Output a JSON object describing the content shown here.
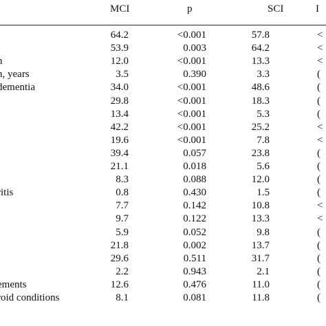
{
  "header": {
    "label": "",
    "mci": "MCI",
    "p": "p",
    "sci": "SCI",
    "extra": "I"
  },
  "rows": [
    {
      "label": "",
      "mci": "64.2",
      "p": "<0.001",
      "sci": "57.8",
      "extra": "<"
    },
    {
      "label": "",
      "mci": "53.9",
      "p": "0.003",
      "sci": "64.2",
      "extra": "<"
    },
    {
      "label": "n",
      "mci": "12.0",
      "p": "<0.001",
      "sci": "13.3",
      "extra": "<"
    },
    {
      "label": "n, years",
      "mci": "3.5",
      "p": "0.390",
      "sci": "3.3",
      "extra": "("
    },
    {
      "label": "dementia",
      "mci": "34.0",
      "p": "<0.001",
      "sci": "48.6",
      "extra": "("
    },
    {
      "label": "",
      "mci": "29.8",
      "p": "<0.001",
      "sci": "18.3",
      "extra": "("
    },
    {
      "label": "",
      "mci": "13.4",
      "p": "<0.001",
      "sci": "5.3",
      "extra": "("
    },
    {
      "label": "",
      "mci": "42.2",
      "p": "<0.001",
      "sci": "25.2",
      "extra": "<"
    },
    {
      "label": "",
      "mci": "19.6",
      "p": "<0.001",
      "sci": "7.8",
      "extra": "<"
    },
    {
      "label": "",
      "mci": "39.4",
      "p": "0.057",
      "sci": "23.8",
      "extra": "("
    },
    {
      "label": "",
      "mci": "21.1",
      "p": "0.018",
      "sci": "5.6",
      "extra": "("
    },
    {
      "label": "",
      "mci": "8.3",
      "p": "0.088",
      "sci": "12.0",
      "extra": "("
    },
    {
      "label": "ritis",
      "mci": "0.8",
      "p": "0.430",
      "sci": "1.5",
      "extra": "("
    },
    {
      "label": "",
      "mci": "7.7",
      "p": "0.142",
      "sci": "10.8",
      "extra": "<"
    },
    {
      "label": "",
      "mci": "9.7",
      "p": "0.122",
      "sci": "13.3",
      "extra": "<"
    },
    {
      "label": "",
      "mci": "5.9",
      "p": "0.052",
      "sci": "9.8",
      "extra": "("
    },
    {
      "label": "",
      "mci": "21.8",
      "p": "0.002",
      "sci": "13.7",
      "extra": "("
    },
    {
      "label": "",
      "mci": "29.6",
      "p": "0.511",
      "sci": "31.7",
      "extra": "("
    },
    {
      "label": "",
      "mci": "2.2",
      "p": "0.943",
      "sci": "2.1",
      "extra": "("
    },
    {
      "label": "ements",
      "mci": "12.6",
      "p": "0.476",
      "sci": "11.0",
      "extra": "("
    },
    {
      "label": "roid conditions",
      "mci": "8.1",
      "p": "0.081",
      "sci": "11.8",
      "extra": "("
    }
  ]
}
